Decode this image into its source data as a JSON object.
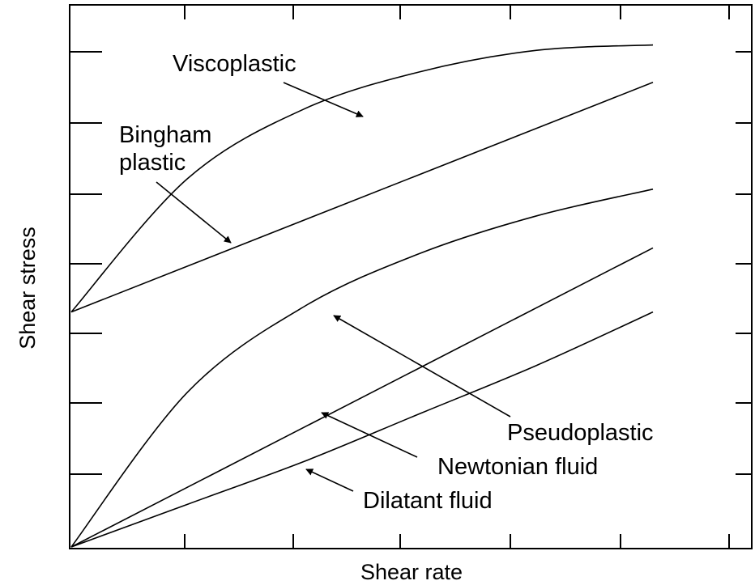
{
  "chart_data": {
    "type": "line",
    "xlabel": "Shear rate",
    "ylabel": "Shear stress",
    "xlim": [
      0,
      100
    ],
    "ylim": [
      0,
      100
    ],
    "grid": false,
    "ticks": "inward, unlabeled",
    "series": [
      {
        "name": "Viscoplastic",
        "x": [
          0,
          20,
          40,
          60,
          80,
          100
        ],
        "y": [
          44,
          69,
          82,
          89,
          93,
          94
        ],
        "color": "#000000"
      },
      {
        "name": "Bingham plastic",
        "x": [
          0,
          100
        ],
        "y": [
          44,
          87
        ],
        "color": "#000000"
      },
      {
        "name": "Pseudoplastic",
        "x": [
          0,
          20,
          40,
          60,
          80,
          100
        ],
        "y": [
          0,
          29,
          45,
          55,
          62,
          67
        ],
        "color": "#000000"
      },
      {
        "name": "Newtonian fluid",
        "x": [
          0,
          100
        ],
        "y": [
          0,
          56
        ],
        "color": "#000000"
      },
      {
        "name": "Dilatant fluid",
        "x": [
          0,
          20,
          40,
          60,
          80,
          100
        ],
        "y": [
          0,
          8,
          16,
          25,
          34,
          44
        ],
        "color": "#000000"
      }
    ],
    "annotations": [
      {
        "text": "Viscoplastic",
        "points_to": "Viscoplastic",
        "at_x": 48
      },
      {
        "lines": [
          "Bingham",
          "plastic"
        ],
        "points_to": "Bingham plastic",
        "at_x": 28
      },
      {
        "text": "Pseudoplastic",
        "points_to": "Pseudoplastic",
        "at_x": 45
      },
      {
        "text": "Newtonian fluid",
        "points_to": "Newtonian fluid",
        "at_x": 44
      },
      {
        "text": "Dilatant fluid",
        "points_to": "Dilatant fluid",
        "at_x": 41
      }
    ]
  }
}
